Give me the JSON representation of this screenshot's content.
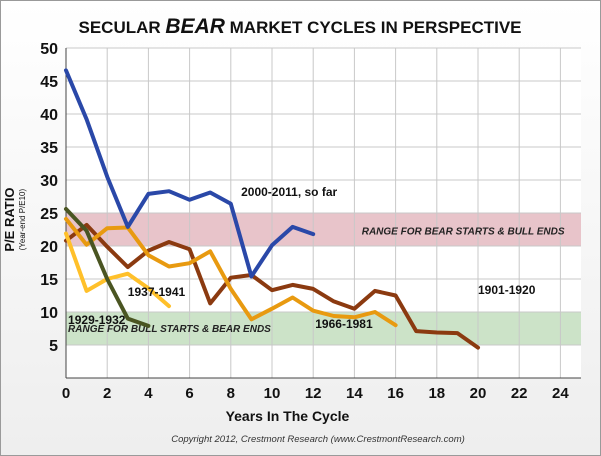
{
  "chart_data": {
    "type": "line",
    "title_parts": [
      "SECULAR",
      "BEAR",
      "MARKET CYCLES IN PERSPECTIVE"
    ],
    "xlabel": "Years In The Cycle",
    "ylabel": "P/E RATIO",
    "ylabel_sub": "(Year-end P/E10)",
    "xlim": [
      0,
      25
    ],
    "ylim": [
      0,
      50
    ],
    "x_ticks": [
      0,
      2,
      4,
      6,
      8,
      10,
      12,
      14,
      16,
      18,
      20,
      22,
      24
    ],
    "y_ticks": [
      0,
      5,
      10,
      15,
      20,
      25,
      30,
      35,
      40,
      45,
      50
    ],
    "bands": [
      {
        "name": "bear-band",
        "label": "RANGE FOR BEAR STARTS & BULL ENDS",
        "from": 20,
        "to": 25,
        "color": "#e8c4ca"
      },
      {
        "name": "bull-band",
        "label": "RANGE FOR BULL STARTS & BEAR ENDS",
        "from": 5,
        "to": 10,
        "color": "#cce3c8"
      }
    ],
    "series": [
      {
        "name": "1901-1920",
        "color": "#8b3a10",
        "x": [
          0,
          1,
          2,
          3,
          4,
          5,
          6,
          7,
          8,
          9,
          10,
          11,
          12,
          13,
          14,
          15,
          16,
          17,
          18,
          19,
          20
        ],
        "values": [
          20.8,
          23.2,
          19.9,
          16.8,
          19.3,
          20.6,
          19.5,
          11.3,
          15.2,
          15.6,
          13.3,
          14.1,
          13.5,
          11.6,
          10.5,
          13.2,
          12.5,
          7.1,
          6.9,
          6.8,
          4.6
        ]
      },
      {
        "name": "1966-1981",
        "color": "#e89a10",
        "x": [
          0,
          1,
          2,
          3,
          4,
          5,
          6,
          7,
          8,
          9,
          10,
          11,
          12,
          13,
          14,
          15,
          16
        ],
        "values": [
          24.1,
          20.2,
          22.7,
          22.8,
          18.6,
          16.9,
          17.4,
          19.2,
          13.5,
          8.9,
          10.5,
          12.2,
          10.2,
          9.4,
          9.2,
          10.0,
          8.0
        ]
      },
      {
        "name": "1937-1941",
        "color": "#ffc02a",
        "x": [
          0,
          1,
          2,
          3,
          4,
          5
        ],
        "values": [
          21.9,
          13.2,
          15.0,
          15.8,
          13.6,
          10.9
        ]
      },
      {
        "name": "1929-1932",
        "color": "#4a5522",
        "x": [
          0,
          1,
          2,
          3,
          4
        ],
        "values": [
          25.6,
          22.3,
          15.0,
          9.0,
          7.9
        ]
      },
      {
        "name": "2000-2011, so far",
        "color": "#2a48a8",
        "x": [
          0,
          1,
          2,
          3,
          4,
          5,
          6,
          7,
          8,
          9,
          10,
          11,
          12
        ],
        "values": [
          46.6,
          39.2,
          30.5,
          22.9,
          27.9,
          28.3,
          27.0,
          28.1,
          26.4,
          15.4,
          20.1,
          22.9,
          21.8
        ]
      }
    ],
    "labels": [
      {
        "series": "2000-2011, so far",
        "text": "2000-2011, so far",
        "x": 8.5,
        "y": 27.6
      },
      {
        "series": "1901-1920",
        "text": "1901-1920",
        "x": 20.0,
        "y": 12.7
      },
      {
        "series": "1966-1981",
        "text": "1966-1981",
        "x": 12.1,
        "y": 7.6
      },
      {
        "series": "1937-1941",
        "text": "1937-1941",
        "x": 3.0,
        "y": 12.4
      },
      {
        "series": "1929-1932",
        "text": "1929-1932",
        "x": 0.1,
        "y": 8.2
      }
    ],
    "copyright": "Copyright 2012,  Crestmont Research (www.CrestmontResearch.com)"
  }
}
